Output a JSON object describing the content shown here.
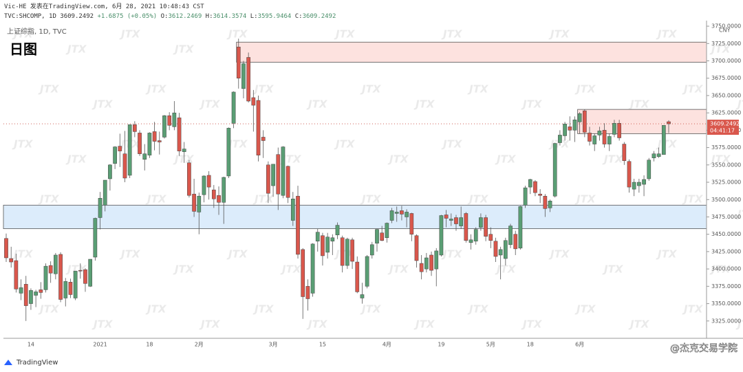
{
  "header": {
    "publisher": "Vic-HE 发表在TradingView.com, 6月 28, 2021 10:48:43 CST",
    "symbol": "TVC:SHCOMP, 1D",
    "last": "3609.2492",
    "change": "+1.6875",
    "change_pct": "(+0.05%)",
    "ohlc": [
      {
        "label": "O:",
        "value": "3612.2469"
      },
      {
        "label": "H:",
        "value": "3614.3574"
      },
      {
        "label": "L:",
        "value": "3595.9464"
      },
      {
        "label": "C:",
        "value": "3609.2492"
      }
    ]
  },
  "footer": {
    "logo": "TradingView",
    "credit": "@杰克交易学院"
  },
  "chart_data": {
    "type": "candlestick",
    "title": "日图",
    "legend": "上证综指, 1D, TVC",
    "currency": "CNY",
    "watermark": "JTX",
    "up_color": "#5a9e74",
    "down_color": "#d9574c",
    "categories": [
      null,
      null,
      null,
      null,
      null,
      "14",
      null,
      null,
      null,
      null,
      null,
      null,
      null,
      null,
      null,
      null,
      null,
      null,
      null,
      "2021",
      null,
      null,
      null,
      null,
      null,
      null,
      null,
      null,
      null,
      "18",
      null,
      null,
      null,
      null,
      null,
      null,
      null,
      null,
      null,
      "2月",
      null,
      null,
      null,
      null,
      null,
      null,
      null,
      null,
      null,
      null,
      null,
      null,
      null,
      null,
      "3月",
      null,
      null,
      null,
      null,
      null,
      null,
      null,
      null,
      null,
      "15",
      null,
      null,
      null,
      null,
      null,
      null,
      null,
      null,
      null,
      null,
      null,
      null,
      "4月",
      null,
      null,
      null,
      null,
      null,
      null,
      null,
      null,
      null,
      null,
      "19",
      null,
      null,
      null,
      null,
      null,
      null,
      null,
      null,
      null,
      "5月",
      null,
      null,
      null,
      null,
      null,
      null,
      null,
      "18",
      null,
      null,
      null,
      null,
      null,
      null,
      null,
      null,
      null,
      "6月",
      null,
      null,
      null,
      null,
      null,
      null,
      null,
      null,
      null,
      null,
      null,
      null,
      null,
      null,
      null,
      null,
      null,
      null
    ],
    "open": [
      3444,
      3415,
      3412,
      3365,
      3378,
      3350,
      3362,
      3370,
      3370,
      3405,
      3393,
      3421,
      3358,
      3381,
      3358,
      3398,
      3399,
      3375,
      3417,
      3474,
      3492,
      3530,
      3552,
      3577,
      3566,
      3535,
      3608,
      3596,
      3558,
      3564,
      3598,
      3585,
      3590,
      3621,
      3605,
      3618,
      3569,
      3553,
      3508,
      3482,
      3507,
      3535,
      3514,
      3506,
      3496,
      3534,
      3610,
      3720,
      3660,
      3705,
      3647,
      3643,
      3590,
      3550,
      3520,
      3565,
      3506,
      3548,
      3470,
      3505,
      3428,
      3375,
      3365,
      3440,
      3448,
      3424,
      3440,
      3449,
      3445,
      3405,
      3442,
      3410,
      3358,
      3375,
      3420,
      3437,
      3452,
      3445,
      3470,
      3480,
      3484,
      3475,
      3480,
      3448,
      3408,
      3400,
      3420,
      3400,
      3420,
      3478,
      3470,
      3474,
      3462,
      3480,
      3438,
      3440,
      3460,
      3474,
      3450,
      3440,
      3420,
      3415,
      3435,
      3450,
      3430,
      3492,
      3518,
      3526,
      3508,
      3505,
      3488,
      3505,
      3582,
      3592,
      3605,
      3600,
      3612,
      3628,
      3596,
      3580,
      3593,
      3600,
      3580,
      3594,
      3610,
      3580,
      3555,
      3515,
      3520,
      3522,
      3530,
      3560,
      3562,
      3565,
      3612.2469
    ],
    "high": [
      3451,
      3432,
      3422,
      3385,
      3390,
      3372,
      3370,
      3381,
      3408,
      3411,
      3423,
      3424,
      3387,
      3386,
      3397,
      3408,
      3401,
      3414,
      3474,
      3511,
      3528,
      3551,
      3577,
      3595,
      3599,
      3608,
      3613,
      3600,
      3580,
      3597,
      3612,
      3598,
      3622,
      3626,
      3642,
      3625,
      3583,
      3557,
      3530,
      3510,
      3535,
      3541,
      3521,
      3519,
      3533,
      3604,
      3656,
      3732,
      3700,
      3712,
      3658,
      3650,
      3600,
      3555,
      3551,
      3575,
      3577,
      3549,
      3511,
      3520,
      3430,
      3385,
      3437,
      3458,
      3452,
      3452,
      3450,
      3467,
      3448,
      3445,
      3445,
      3418,
      3380,
      3420,
      3439,
      3458,
      3462,
      3467,
      3488,
      3490,
      3491,
      3486,
      3481,
      3450,
      3420,
      3423,
      3425,
      3430,
      3478,
      3485,
      3480,
      3478,
      3490,
      3482,
      3450,
      3460,
      3480,
      3478,
      3460,
      3445,
      3432,
      3445,
      3465,
      3455,
      3491,
      3520,
      3530,
      3528,
      3515,
      3508,
      3500,
      3582,
      3600,
      3612,
      3620,
      3620,
      3626,
      3630,
      3605,
      3595,
      3605,
      3610,
      3595,
      3615,
      3615,
      3583,
      3558,
      3530,
      3530,
      3535,
      3560,
      3570,
      3575,
      3607,
      3614.3574
    ],
    "low": [
      3410,
      3402,
      3366,
      3355,
      3325,
      3341,
      3345,
      3357,
      3366,
      3380,
      3385,
      3352,
      3346,
      3358,
      3355,
      3386,
      3367,
      3374,
      3412,
      3457,
      3483,
      3513,
      3544,
      3547,
      3525,
      3531,
      3590,
      3563,
      3542,
      3560,
      3571,
      3565,
      3588,
      3600,
      3600,
      3563,
      3553,
      3503,
      3475,
      3450,
      3496,
      3500,
      3488,
      3478,
      3465,
      3531,
      3603,
      3660,
      3646,
      3640,
      3598,
      3555,
      3560,
      3495,
      3504,
      3485,
      3502,
      3495,
      3462,
      3415,
      3328,
      3340,
      3360,
      3425,
      3405,
      3415,
      3420,
      3443,
      3395,
      3400,
      3400,
      3365,
      3350,
      3372,
      3415,
      3425,
      3440,
      3438,
      3466,
      3468,
      3470,
      3460,
      3440,
      3402,
      3385,
      3395,
      3390,
      3375,
      3418,
      3460,
      3462,
      3455,
      3458,
      3438,
      3428,
      3435,
      3455,
      3440,
      3430,
      3410,
      3385,
      3405,
      3430,
      3420,
      3428,
      3488,
      3508,
      3505,
      3495,
      3475,
      3482,
      3503,
      3578,
      3585,
      3585,
      3583,
      3595,
      3590,
      3578,
      3570,
      3585,
      3575,
      3570,
      3590,
      3585,
      3550,
      3510,
      3505,
      3510,
      3505,
      3527,
      3555,
      3560,
      3565,
      3595.9464
    ],
    "close": [
      3416,
      3410,
      3371,
      3373,
      3347,
      3369,
      3367,
      3366,
      3404,
      3394,
      3420,
      3356,
      3382,
      3363,
      3397,
      3397,
      3379,
      3414,
      3473,
      3502,
      3528,
      3550,
      3576,
      3570,
      3531,
      3608,
      3598,
      3566,
      3566,
      3596,
      3584,
      3583,
      3621,
      3607,
      3625,
      3570,
      3573,
      3506,
      3483,
      3505,
      3534,
      3518,
      3501,
      3496,
      3532,
      3603,
      3655,
      3675,
      3696,
      3642,
      3636,
      3564,
      3585,
      3509,
      3551,
      3508,
      3576,
      3503,
      3501,
      3421,
      3360,
      3357,
      3436,
      3453,
      3419,
      3446,
      3445,
      3463,
      3405,
      3443,
      3411,
      3367,
      3363,
      3418,
      3435,
      3457,
      3441,
      3466,
      3484,
      3482,
      3479,
      3482,
      3450,
      3412,
      3396,
      3416,
      3398,
      3426,
      3477,
      3473,
      3472,
      3465,
      3474,
      3441,
      3442,
      3457,
      3474,
      3447,
      3441,
      3418,
      3428,
      3441,
      3462,
      3429,
      3490,
      3517,
      3529,
      3510,
      3506,
      3487,
      3498,
      3581,
      3593,
      3609,
      3600,
      3615,
      3624,
      3597,
      3584,
      3592,
      3599,
      3580,
      3591,
      3610,
      3589,
      3556,
      3518,
      3525,
      3525,
      3529,
      3557,
      3566,
      3566,
      3607,
      3609.2492
    ],
    "zones": [
      {
        "low": 3698,
        "high": 3727,
        "start": 47,
        "color": "#fde2df"
      },
      {
        "low": 3458,
        "high": 3492,
        "start": 0,
        "color": "#dcecfb"
      },
      {
        "low": 3595,
        "high": 3630,
        "start": 116,
        "color": "#fde2df"
      }
    ],
    "last_price": {
      "value": 3609.2492,
      "label": "3609.2492"
    },
    "countdown": "04:41:17",
    "ylim": [
      3300,
      3758
    ],
    "yticks": [
      {
        "value": 3325,
        "label": "3325.0000"
      },
      {
        "value": 3350,
        "label": "3350.0000"
      },
      {
        "value": 3375,
        "label": "3375.0000"
      },
      {
        "value": 3400,
        "label": "3400.0000"
      },
      {
        "value": 3425,
        "label": "3425.0000"
      },
      {
        "value": 3450,
        "label": "3450.0000"
      },
      {
        "value": 3475,
        "label": "3475.0000"
      },
      {
        "value": 3500,
        "label": "3500.0000"
      },
      {
        "value": 3525,
        "label": "3525.0000"
      },
      {
        "value": 3550,
        "label": "3550.0000"
      },
      {
        "value": 3575,
        "label": "3575.0000"
      },
      {
        "value": 3600,
        "label": "3600.0000"
      },
      {
        "value": 3625,
        "label": "3625.0000"
      },
      {
        "value": 3650,
        "label": "3650.0000"
      },
      {
        "value": 3675,
        "label": "3675.0000"
      },
      {
        "value": 3700,
        "label": "3700.0000"
      },
      {
        "value": 3725,
        "label": "3725.0000"
      },
      {
        "value": 3750,
        "label": "3750.0000"
      }
    ]
  }
}
